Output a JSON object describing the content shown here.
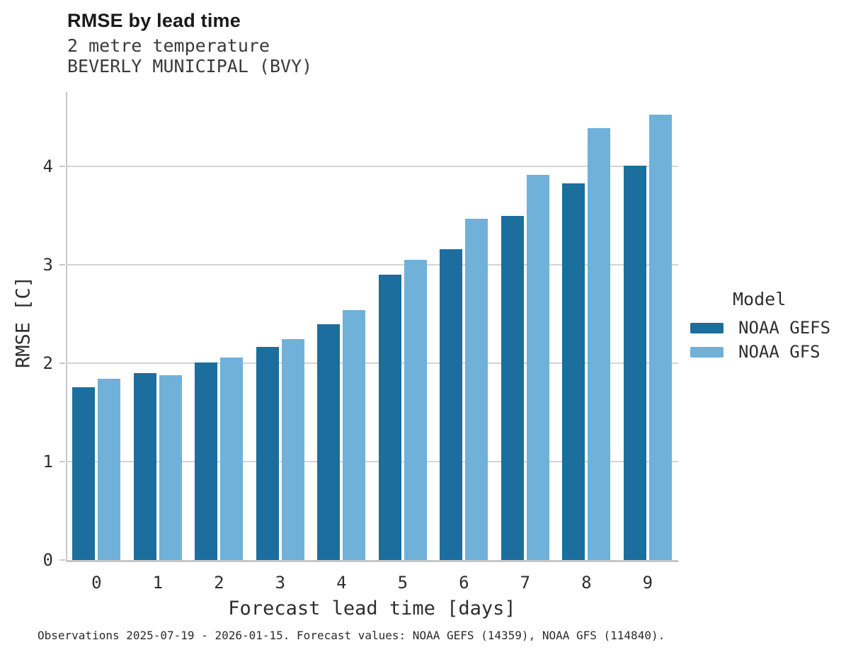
{
  "chart_data": {
    "type": "bar",
    "title": "RMSE by lead time",
    "subtitle": [
      "2 metre temperature",
      "BEVERLY MUNICIPAL (BVY)"
    ],
    "categories": [
      "0",
      "1",
      "2",
      "3",
      "4",
      "5",
      "6",
      "7",
      "8",
      "9"
    ],
    "series": [
      {
        "name": "NOAA GEFS",
        "color": "#1b6e9e",
        "values": [
          1.76,
          1.9,
          2.01,
          2.17,
          2.4,
          2.9,
          3.16,
          3.5,
          3.83,
          4.01
        ]
      },
      {
        "name": "NOAA GFS",
        "color": "#6fb1d8",
        "values": [
          1.84,
          1.88,
          2.06,
          2.25,
          2.54,
          3.05,
          3.47,
          3.92,
          4.39,
          4.53
        ]
      }
    ],
    "xlabel": "Forecast lead time [days]",
    "ylabel": "RMSE [C]",
    "ylim": [
      0,
      4.76
    ],
    "yticks": [
      0,
      1,
      2,
      3,
      4
    ],
    "grid": "horizontal",
    "legend_title": "Model",
    "legend_position": "right"
  },
  "footer": {
    "caption": "Observations 2025-07-19 - 2026-01-15. Forecast values: NOAA GEFS (14359), NOAA GFS (114840)."
  }
}
